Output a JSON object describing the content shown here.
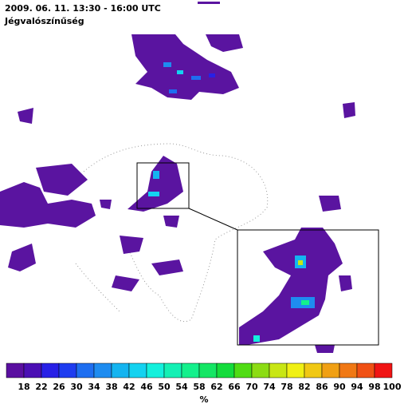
{
  "title": "2009. 06. 11. 13:30 - 16:00 UTC",
  "subtitle": "Jégvalószínűség",
  "legend": {
    "colors": [
      "#5a0fa0",
      "#4b0fb4",
      "#2820e6",
      "#1e3cf0",
      "#1e6ef0",
      "#1e8cf0",
      "#14b4f0",
      "#14d2f0",
      "#14f0dc",
      "#14f0b4",
      "#14f08c",
      "#14e664",
      "#14dc3c",
      "#50dc14",
      "#8cdc14",
      "#c8e614",
      "#f0f014",
      "#f0c814",
      "#f0a014",
      "#f07814",
      "#f05014",
      "#f01414"
    ],
    "ticks": [
      18,
      22,
      26,
      30,
      34,
      38,
      42,
      46,
      50,
      54,
      58,
      62,
      66,
      70,
      74,
      78,
      82,
      86,
      90,
      94,
      98,
      100
    ],
    "unit": "%"
  }
}
